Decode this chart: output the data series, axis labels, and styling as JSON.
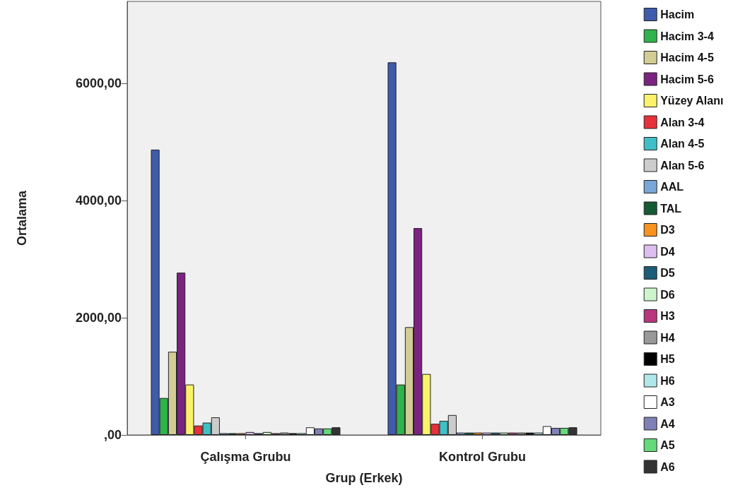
{
  "chart_data": {
    "type": "bar",
    "xlabel": "Grup (Erkek)",
    "ylabel": "Ortalama",
    "categories": [
      "Çalışma Grubu",
      "Kontrol Grubu"
    ],
    "ylim": [
      0,
      7400
    ],
    "yticks": [
      {
        "value": 0,
        "label": ",00"
      },
      {
        "value": 2000,
        "label": "2000,00"
      },
      {
        "value": 4000,
        "label": "4000,00"
      },
      {
        "value": 6000,
        "label": "6000,00"
      }
    ],
    "grid": false,
    "legend": "right",
    "series": [
      {
        "name": "Hacim",
        "color": "#3f5bab",
        "values": [
          4870,
          6360
        ]
      },
      {
        "name": "Hacim 3-4",
        "color": "#2fb34a",
        "values": [
          630,
          860
        ]
      },
      {
        "name": "Hacim 4-5",
        "color": "#d2cc95",
        "values": [
          1420,
          1840
        ]
      },
      {
        "name": "Hacim 5-6",
        "color": "#7b2381",
        "values": [
          2770,
          3530
        ]
      },
      {
        "name": "Yüzey Alanı",
        "color": "#fcf26a",
        "values": [
          860,
          1040
        ]
      },
      {
        "name": "Alan 3-4",
        "color": "#e8303a",
        "values": [
          160,
          190
        ]
      },
      {
        "name": "Alan 4-5",
        "color": "#3fc0c6",
        "values": [
          210,
          240
        ]
      },
      {
        "name": "Alan 5-6",
        "color": "#cccccc",
        "values": [
          300,
          340
        ]
      },
      {
        "name": "AAL",
        "color": "#7aa6d8",
        "values": [
          30,
          40
        ]
      },
      {
        "name": "TAL",
        "color": "#145a32",
        "values": [
          30,
          40
        ]
      },
      {
        "name": "D3",
        "color": "#f7931e",
        "values": [
          30,
          40
        ]
      },
      {
        "name": "D4",
        "color": "#dcbff0",
        "values": [
          50,
          40
        ]
      },
      {
        "name": "D5",
        "color": "#1a5d78",
        "values": [
          30,
          40
        ]
      },
      {
        "name": "D6",
        "color": "#ccf5cc",
        "values": [
          50,
          40
        ]
      },
      {
        "name": "H3",
        "color": "#b8377f",
        "values": [
          30,
          40
        ]
      },
      {
        "name": "H4",
        "color": "#999999",
        "values": [
          40,
          40
        ]
      },
      {
        "name": "H5",
        "color": "#000000",
        "values": [
          30,
          40
        ]
      },
      {
        "name": "H6",
        "color": "#b0e8ea",
        "values": [
          30,
          40
        ]
      },
      {
        "name": "A3",
        "color": "#ffffff",
        "values": [
          130,
          150
        ]
      },
      {
        "name": "A4",
        "color": "#8080b8",
        "values": [
          110,
          120
        ]
      },
      {
        "name": "A5",
        "color": "#66d97a",
        "values": [
          110,
          120
        ]
      },
      {
        "name": "A6",
        "color": "#333333",
        "values": [
          130,
          130
        ]
      }
    ]
  }
}
